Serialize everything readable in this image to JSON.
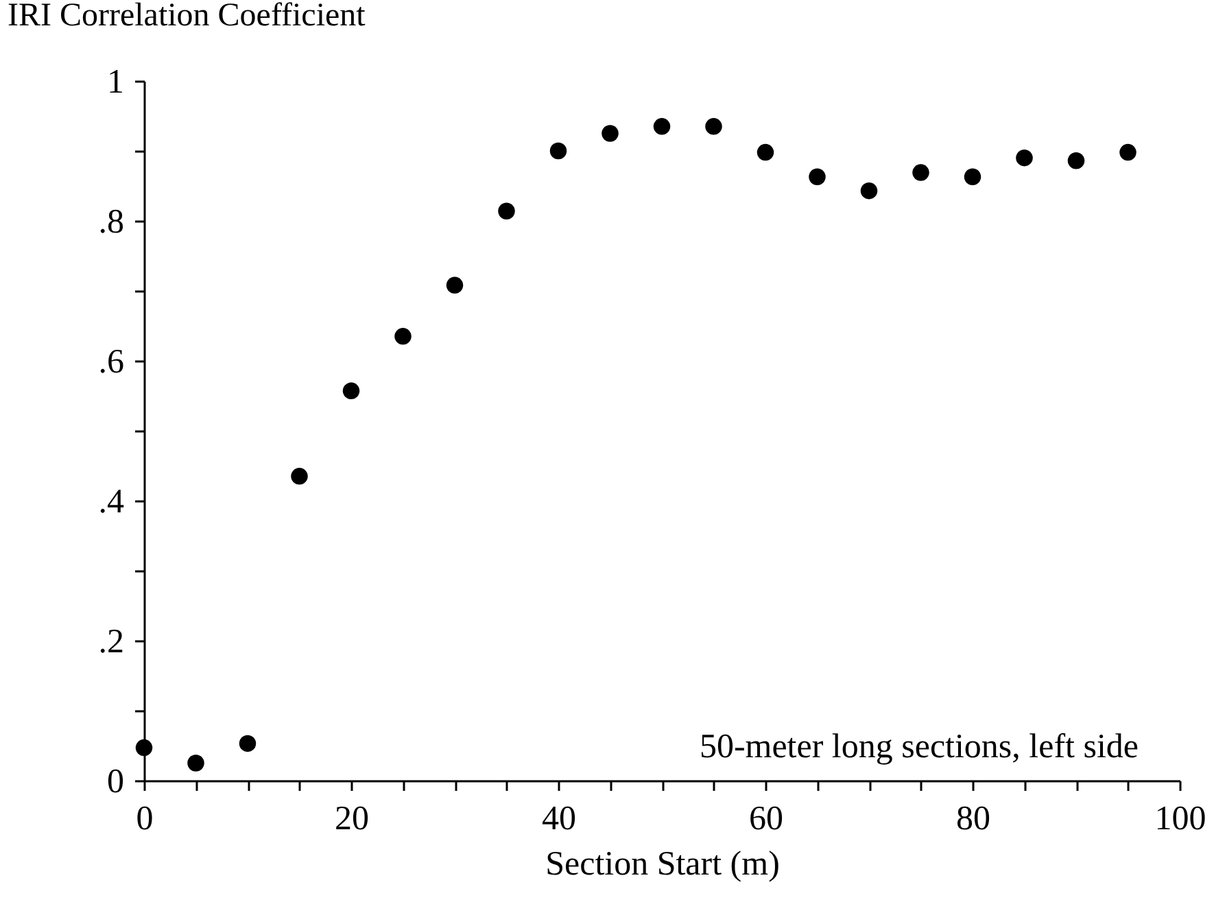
{
  "chart_data": {
    "type": "scatter",
    "xlabel": "Section Start (m)",
    "ylabel": "IRI Correlation Coefficient",
    "x": [
      0,
      5,
      10,
      15,
      20,
      25,
      30,
      35,
      40,
      45,
      50,
      55,
      60,
      65,
      70,
      75,
      80,
      85,
      90,
      95
    ],
    "series": [
      {
        "color": "#000000",
        "values": [
          0.047,
          0.025,
          0.053,
          0.435,
          0.557,
          0.635,
          0.708,
          0.814,
          0.9,
          0.925,
          0.935,
          0.935,
          0.898,
          0.863,
          0.843,
          0.869,
          0.863,
          0.89,
          0.886,
          0.898
        ]
      }
    ],
    "xlim": [
      0,
      100
    ],
    "ylim": [
      0,
      1
    ],
    "xticks": [
      0,
      {
        "value": 5,
        "label": null
      },
      {
        "value": 10,
        "label": null
      },
      {
        "value": 15,
        "label": null
      },
      20,
      {
        "value": 25,
        "label": null
      },
      {
        "value": 30,
        "label": null
      },
      {
        "value": 35,
        "label": null
      },
      40,
      {
        "value": 45,
        "label": null
      },
      {
        "value": 50,
        "label": null
      },
      {
        "value": 55,
        "label": null
      },
      60,
      {
        "value": 65,
        "label": null
      },
      {
        "value": 70,
        "label": null
      },
      {
        "value": 75,
        "label": null
      },
      80,
      {
        "value": 85,
        "label": null
      },
      {
        "value": 90,
        "label": null
      },
      {
        "value": 95,
        "label": null
      },
      100
    ],
    "yticks": [
      0,
      {
        "value": 0.1,
        "label": null
      },
      {
        "value": 0.2,
        "label": ".2"
      },
      {
        "value": 0.3,
        "label": null
      },
      {
        "value": 0.4,
        "label": ".4"
      },
      {
        "value": 0.5,
        "label": null
      },
      {
        "value": 0.6,
        "label": ".6"
      },
      {
        "value": 0.7,
        "label": null
      },
      {
        "value": 0.8,
        "label": ".8"
      },
      {
        "value": 0.9,
        "label": null
      },
      1
    ],
    "marker": "circle",
    "grid": false,
    "legend": false,
    "annotations": [
      "50-meter long sections, left side"
    ]
  }
}
